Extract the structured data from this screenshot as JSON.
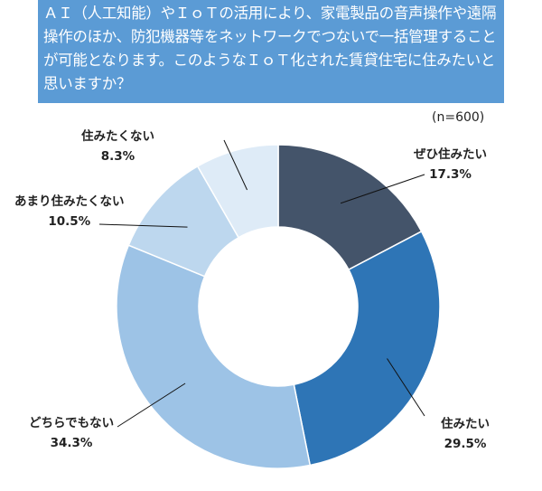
{
  "header": {
    "question": "ＡＩ（人工知能）やＩｏＴの活用により、家電製品の音声操作や遠隔操作のほか、防犯機器等をネットワークでつないで一括管理することが可能となります。このようなＩｏＴ化された賃貸住宅に住みたいと思いますか？"
  },
  "chart_data": {
    "type": "pie",
    "donut": true,
    "sample_size": "(n=600)",
    "categories": [
      "ぜひ住みたい",
      "住みたい",
      "どちらでもない",
      "あまり住みたくない",
      "住みたくない"
    ],
    "values": [
      17.3,
      29.5,
      34.3,
      10.5,
      8.3
    ],
    "value_labels": [
      "17.3%",
      "29.5%",
      "34.3%",
      "10.5%",
      "8.3%"
    ],
    "colors": [
      "#44546a",
      "#2e75b6",
      "#9dc3e6",
      "#bdd7ee",
      "#deebf7"
    ],
    "start": "top",
    "direction": "clockwise"
  }
}
